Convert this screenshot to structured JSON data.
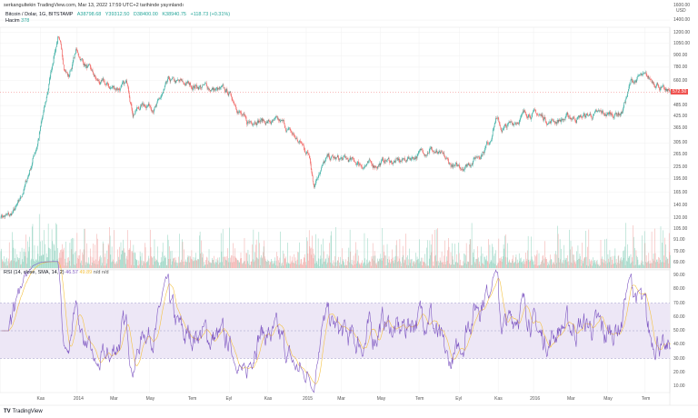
{
  "header": {
    "published": "serkangultekin TradingView.com, Mar 13, 2022 17:59 UTC+2 tarihinde yayınlandı",
    "symbol": "Bitcoin / Dolar, 1G, BITSTAMP",
    "open": "A38798.68",
    "high": "Y39312.50",
    "low": "D38400.00",
    "close": "K38940.75",
    "change": "+118.73 (+0.31%)",
    "volume_label": "Hacim",
    "volume_value": "378"
  },
  "rsi": {
    "label": "RSI (14, close, SMA, 14, 2)",
    "value": "46.57",
    "sma": "49.89",
    "na1": "n/d",
    "na2": "n/d"
  },
  "footer": {
    "brand": "TradingView"
  },
  "colors": {
    "up": "#26a69a",
    "down": "#ef5350",
    "rsi": "#7e57c2",
    "rsi_ma": "#f5c242",
    "band": "#ede7f6",
    "last_price": "#ef5350"
  },
  "chart_data": {
    "type": "candlestick",
    "title": "Bitcoin / Dolar, 1G, BITSTAMP",
    "currency": "USD",
    "yscale": "log",
    "price_ticks": [
      "1400.00",
      "1200.00",
      "1050.00",
      "900.00",
      "780.00",
      "660.00",
      "485.00",
      "425.00",
      "365.00",
      "305.00",
      "265.00",
      "225.00",
      "195.00",
      "165.00",
      "140.00",
      "120.00",
      "105.00",
      "91.00",
      "79.00",
      "69.00"
    ],
    "price_tick_values": [
      1400,
      1200,
      1050,
      900,
      780,
      660,
      485,
      425,
      365,
      305,
      265,
      225,
      195,
      165,
      140,
      120,
      105,
      91,
      79,
      69
    ],
    "axis_top_label": "1600.00",
    "last_price": "572.50",
    "x_ticks": [
      "Kas",
      "2014",
      "Mar",
      "May",
      "Tem",
      "Eyl",
      "Kas",
      "2015",
      "Mar",
      "May",
      "Tem",
      "Eyl",
      "Kas",
      "2016",
      "Mar",
      "May",
      "Tem"
    ],
    "x_tick_days": [
      66,
      127,
      188,
      248,
      318,
      381,
      445,
      509,
      567,
      633,
      697,
      764,
      829,
      888,
      950,
      1011,
      1074
    ],
    "close_path_day_price": [
      [
        0,
        125
      ],
      [
        15,
        122
      ],
      [
        30,
        140
      ],
      [
        45,
        200
      ],
      [
        60,
        300
      ],
      [
        75,
        500
      ],
      [
        88,
        900
      ],
      [
        95,
        1150
      ],
      [
        105,
        800
      ],
      [
        113,
        700
      ],
      [
        125,
        950
      ],
      [
        136,
        850
      ],
      [
        160,
        650
      ],
      [
        182,
        600
      ],
      [
        212,
        620
      ],
      [
        220,
        450
      ],
      [
        240,
        500
      ],
      [
        260,
        480
      ],
      [
        280,
        640
      ],
      [
        303,
        630
      ],
      [
        330,
        620
      ],
      [
        350,
        600
      ],
      [
        380,
        560
      ],
      [
        395,
        480
      ],
      [
        410,
        380
      ],
      [
        425,
        420
      ],
      [
        440,
        400
      ],
      [
        470,
        380
      ],
      [
        500,
        300
      ],
      [
        515,
        260
      ],
      [
        522,
        185
      ],
      [
        530,
        220
      ],
      [
        545,
        250
      ],
      [
        575,
        245
      ],
      [
        600,
        235
      ],
      [
        620,
        230
      ],
      [
        640,
        245
      ],
      [
        665,
        240
      ],
      [
        700,
        270
      ],
      [
        715,
        290
      ],
      [
        730,
        260
      ],
      [
        750,
        230
      ],
      [
        760,
        220
      ],
      [
        780,
        240
      ],
      [
        800,
        270
      ],
      [
        815,
        320
      ],
      [
        825,
        420
      ],
      [
        835,
        360
      ],
      [
        850,
        380
      ],
      [
        865,
        420
      ],
      [
        880,
        450
      ],
      [
        895,
        430
      ],
      [
        915,
        400
      ],
      [
        935,
        410
      ],
      [
        960,
        420
      ],
      [
        985,
        430
      ],
      [
        1010,
        430
      ],
      [
        1035,
        450
      ],
      [
        1050,
        640
      ],
      [
        1065,
        690
      ],
      [
        1080,
        660
      ],
      [
        1095,
        650
      ],
      [
        1108,
        560
      ],
      [
        1116,
        572.5
      ]
    ],
    "rsi_range": [
      0,
      100
    ],
    "rsi_ticks": [
      "90.00",
      "80.00",
      "70.00",
      "60.00",
      "50.00",
      "40.00",
      "30.00",
      "20.00",
      "10.00"
    ],
    "rsi_tick_values": [
      90,
      80,
      70,
      60,
      50,
      40,
      30,
      20,
      10
    ],
    "rsi_bands": [
      30,
      70
    ]
  }
}
